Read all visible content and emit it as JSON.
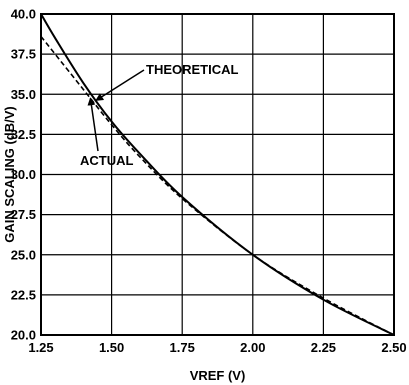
{
  "chart_data": {
    "type": "line",
    "xlabel": "VREF (V)",
    "ylabel": "GAIN SCALING (dB/V)",
    "xlim": [
      1.25,
      2.5
    ],
    "ylim": [
      20.0,
      40.0
    ],
    "x_ticks": [
      "1.25",
      "1.50",
      "1.75",
      "2.00",
      "2.25",
      "2.50"
    ],
    "y_ticks": [
      "40.0",
      "37.5",
      "35.0",
      "32.5",
      "30.0",
      "27.5",
      "25.0",
      "22.5",
      "20.0"
    ],
    "grid": true,
    "series": [
      {
        "name": "THEORETICAL",
        "style": "solid",
        "x": [
          1.25,
          1.3,
          1.4,
          1.5,
          1.6,
          1.75,
          2.0,
          2.25,
          2.5
        ],
        "y": [
          40.0,
          38.5,
          35.7,
          33.3,
          31.3,
          28.6,
          25.0,
          22.2,
          20.0
        ]
      },
      {
        "name": "ACTUAL",
        "style": "dashed",
        "x": [
          1.25,
          1.3,
          1.4,
          1.5,
          1.6,
          1.75,
          2.0,
          2.25,
          2.5
        ],
        "y": [
          38.6,
          37.5,
          35.3,
          33.1,
          31.1,
          28.5,
          25.0,
          22.3,
          20.0
        ]
      }
    ],
    "annotations": [
      {
        "text": "THEORETICAL",
        "target_series": 0,
        "x": 1.445
      },
      {
        "text": "ACTUAL",
        "target_series": 1,
        "x": 1.425
      }
    ]
  }
}
